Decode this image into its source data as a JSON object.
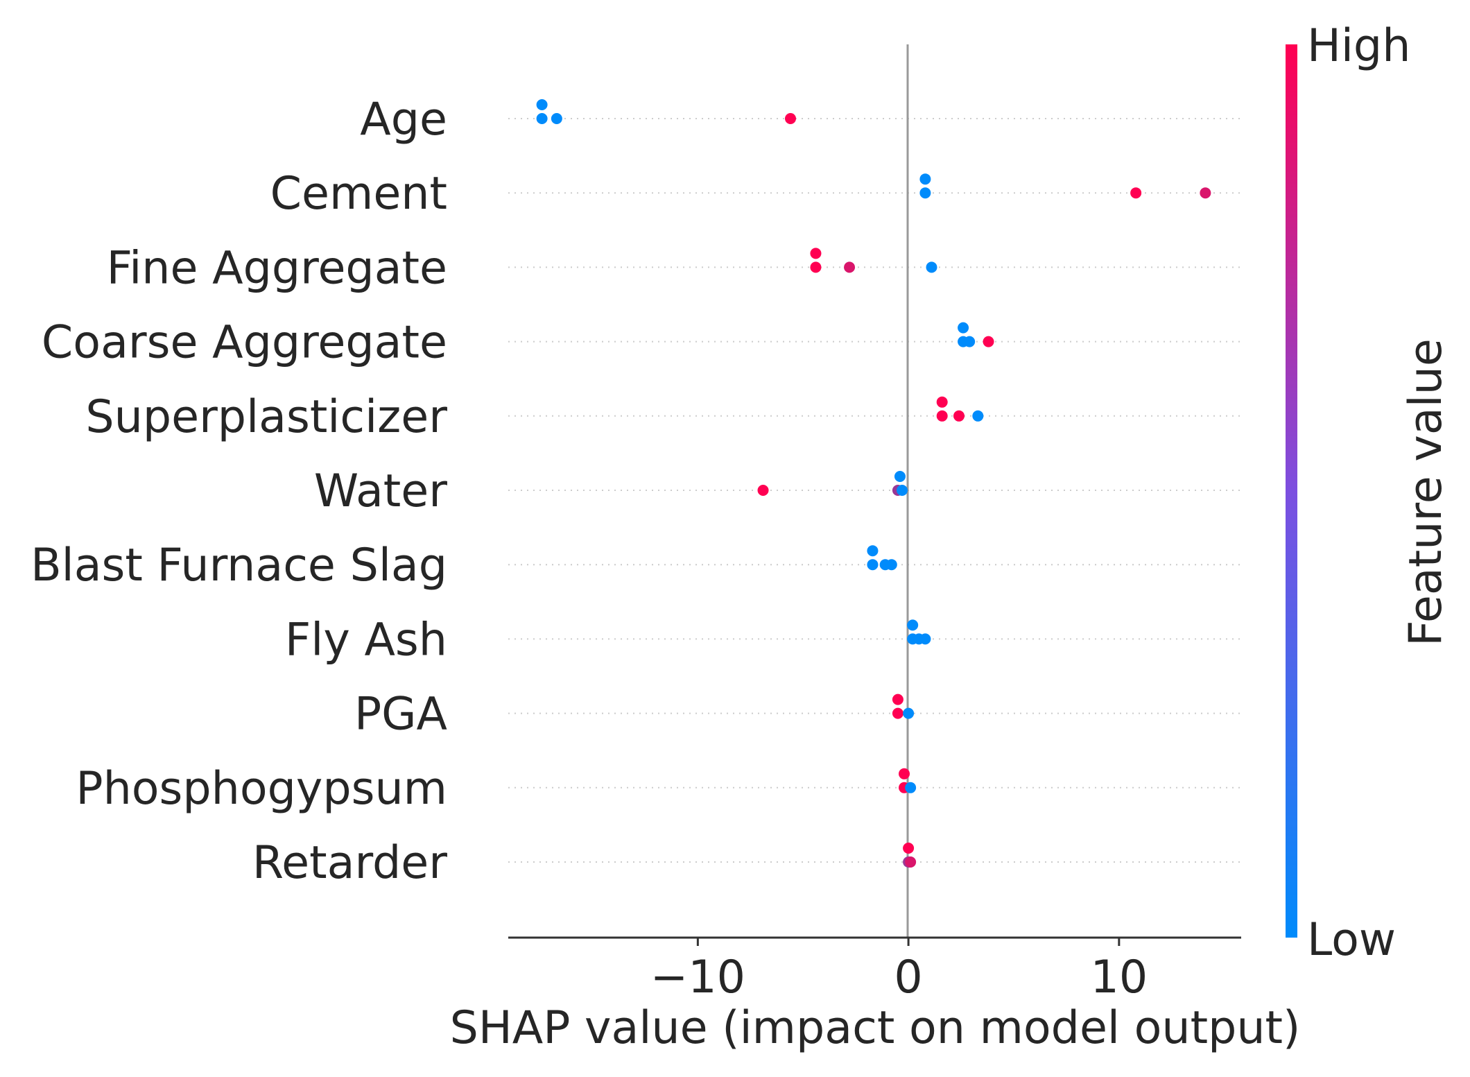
{
  "chart_data": {
    "type": "scatter",
    "title": "",
    "xlabel": "SHAP value (impact on model output)",
    "xlim": [
      -19,
      15.8
    ],
    "xticks": [
      {
        "value": -10,
        "label": "−10"
      },
      {
        "value": 0,
        "label": "0"
      },
      {
        "value": 10,
        "label": "10"
      }
    ],
    "colorbar": {
      "label": "Feature value",
      "high_label": "High",
      "low_label": "Low",
      "high_color": "#ff0052",
      "low_color": "#008bfb"
    },
    "features": [
      {
        "name": "Age",
        "points": [
          {
            "x": -17.4,
            "v": 0.0,
            "lane": -1
          },
          {
            "x": -17.4,
            "v": 0.0,
            "lane": 0
          },
          {
            "x": -16.7,
            "v": 0.0,
            "lane": 0
          },
          {
            "x": -5.6,
            "v": 1.0,
            "lane": 0
          }
        ]
      },
      {
        "name": "Cement",
        "points": [
          {
            "x": 0.8,
            "v": 0.0,
            "lane": -1
          },
          {
            "x": 0.8,
            "v": 0.0,
            "lane": 0
          },
          {
            "x": 10.8,
            "v": 1.0,
            "lane": 0
          },
          {
            "x": 14.1,
            "v": 0.85,
            "lane": 0
          }
        ]
      },
      {
        "name": "Fine Aggregate",
        "points": [
          {
            "x": -4.4,
            "v": 1.0,
            "lane": -1
          },
          {
            "x": -4.4,
            "v": 1.0,
            "lane": 0
          },
          {
            "x": -2.8,
            "v": 0.85,
            "lane": 0
          },
          {
            "x": 1.1,
            "v": 0.0,
            "lane": 0
          }
        ]
      },
      {
        "name": "Coarse Aggregate",
        "points": [
          {
            "x": 2.6,
            "v": 0.0,
            "lane": -1
          },
          {
            "x": 2.6,
            "v": 0.0,
            "lane": 0
          },
          {
            "x": 2.9,
            "v": 0.0,
            "lane": 0
          },
          {
            "x": 3.8,
            "v": 1.0,
            "lane": 0
          }
        ]
      },
      {
        "name": "Superplasticizer",
        "points": [
          {
            "x": 1.6,
            "v": 1.0,
            "lane": -1
          },
          {
            "x": 1.6,
            "v": 1.0,
            "lane": 0
          },
          {
            "x": 2.4,
            "v": 1.0,
            "lane": 0
          },
          {
            "x": 3.3,
            "v": 0.0,
            "lane": 0
          }
        ]
      },
      {
        "name": "Water",
        "points": [
          {
            "x": -6.9,
            "v": 1.0,
            "lane": 0
          },
          {
            "x": -0.4,
            "v": 0.0,
            "lane": -1
          },
          {
            "x": -0.5,
            "v": 0.6,
            "lane": 0
          },
          {
            "x": -0.3,
            "v": 0.0,
            "lane": 0
          }
        ]
      },
      {
        "name": "Blast Furnace Slag",
        "points": [
          {
            "x": -1.7,
            "v": 0.0,
            "lane": -1
          },
          {
            "x": -1.7,
            "v": 0.0,
            "lane": 0
          },
          {
            "x": -1.1,
            "v": 0.0,
            "lane": 0
          },
          {
            "x": -0.8,
            "v": 0.0,
            "lane": 0
          }
        ]
      },
      {
        "name": "Fly Ash",
        "points": [
          {
            "x": 0.2,
            "v": 0.0,
            "lane": -1
          },
          {
            "x": 0.2,
            "v": 0.0,
            "lane": 0
          },
          {
            "x": 0.5,
            "v": 0.0,
            "lane": 0
          },
          {
            "x": 0.8,
            "v": 0.0,
            "lane": 0
          }
        ]
      },
      {
        "name": "PGA",
        "points": [
          {
            "x": -0.5,
            "v": 1.0,
            "lane": -1
          },
          {
            "x": -0.5,
            "v": 1.0,
            "lane": 0
          },
          {
            "x": 0.0,
            "v": 0.0,
            "lane": 0
          }
        ]
      },
      {
        "name": "Phosphogypsum",
        "points": [
          {
            "x": -0.2,
            "v": 1.0,
            "lane": -1
          },
          {
            "x": -0.2,
            "v": 1.0,
            "lane": 0
          },
          {
            "x": 0.1,
            "v": 0.0,
            "lane": 0
          }
        ]
      },
      {
        "name": "Retarder",
        "points": [
          {
            "x": 0.0,
            "v": 1.0,
            "lane": -1
          },
          {
            "x": 0.0,
            "v": 0.6,
            "lane": 0
          },
          {
            "x": 0.1,
            "v": 0.85,
            "lane": 0
          }
        ]
      }
    ]
  }
}
